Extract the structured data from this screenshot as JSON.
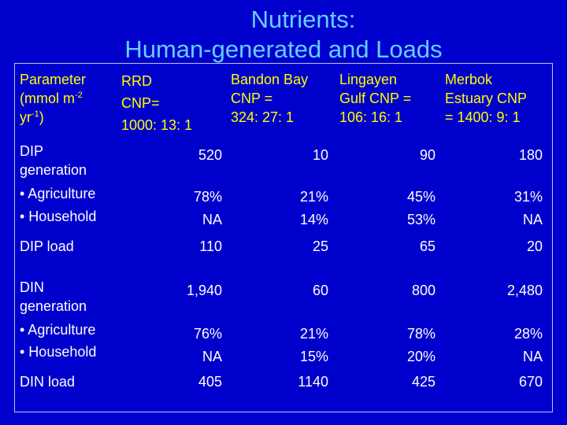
{
  "title": {
    "line1": "Nutrients:",
    "line2": "Human-generated and Loads"
  },
  "headers": {
    "parameter": {
      "line1": "Parameter",
      "line2_pre": "(mmol m",
      "line2_sup": "-2",
      "line3_pre": "yr",
      "line3_sup": "-1",
      "line3_post": ")"
    },
    "rrd": {
      "line1": "RRD",
      "line2": "CNP=",
      "line3": "1000: 13: 1"
    },
    "bandon": {
      "line1": "Bandon Bay",
      "line2": "CNP  =",
      "line3": "324: 27: 1"
    },
    "lingayen": {
      "line1": "Lingayen",
      "line2": "Gulf CNP =",
      "line3": "106: 16: 1"
    },
    "merbok": {
      "line1": "Merbok",
      "line2": "Estuary CNP",
      "line3": "= 1400: 9: 1"
    }
  },
  "rows": {
    "dip_gen": {
      "label1": "DIP",
      "label2": "generation",
      "values": [
        "520",
        "10",
        "90",
        "180"
      ]
    },
    "dip_split": {
      "label1": "• Agriculture",
      "label2": "• Household",
      "agri": [
        "78%",
        "21%",
        "45%",
        "31%"
      ],
      "house": [
        "NA",
        "14%",
        "53%",
        "NA"
      ]
    },
    "dip_load": {
      "label": "DIP load",
      "values": [
        "110",
        "25",
        "65",
        "20"
      ]
    },
    "din_gen": {
      "label1": "DIN",
      "label2": "generation",
      "values": [
        "1,940",
        "60",
        "800",
        "2,480"
      ]
    },
    "din_split": {
      "label1": "• Agriculture",
      "label2": "• Household",
      "agri": [
        "76%",
        "21%",
        "78%",
        "28%"
      ],
      "house": [
        "NA",
        "15%",
        "20%",
        "NA"
      ]
    },
    "din_load": {
      "label": "DIN load",
      "values": [
        "405",
        "1140",
        "425",
        "670"
      ]
    }
  }
}
